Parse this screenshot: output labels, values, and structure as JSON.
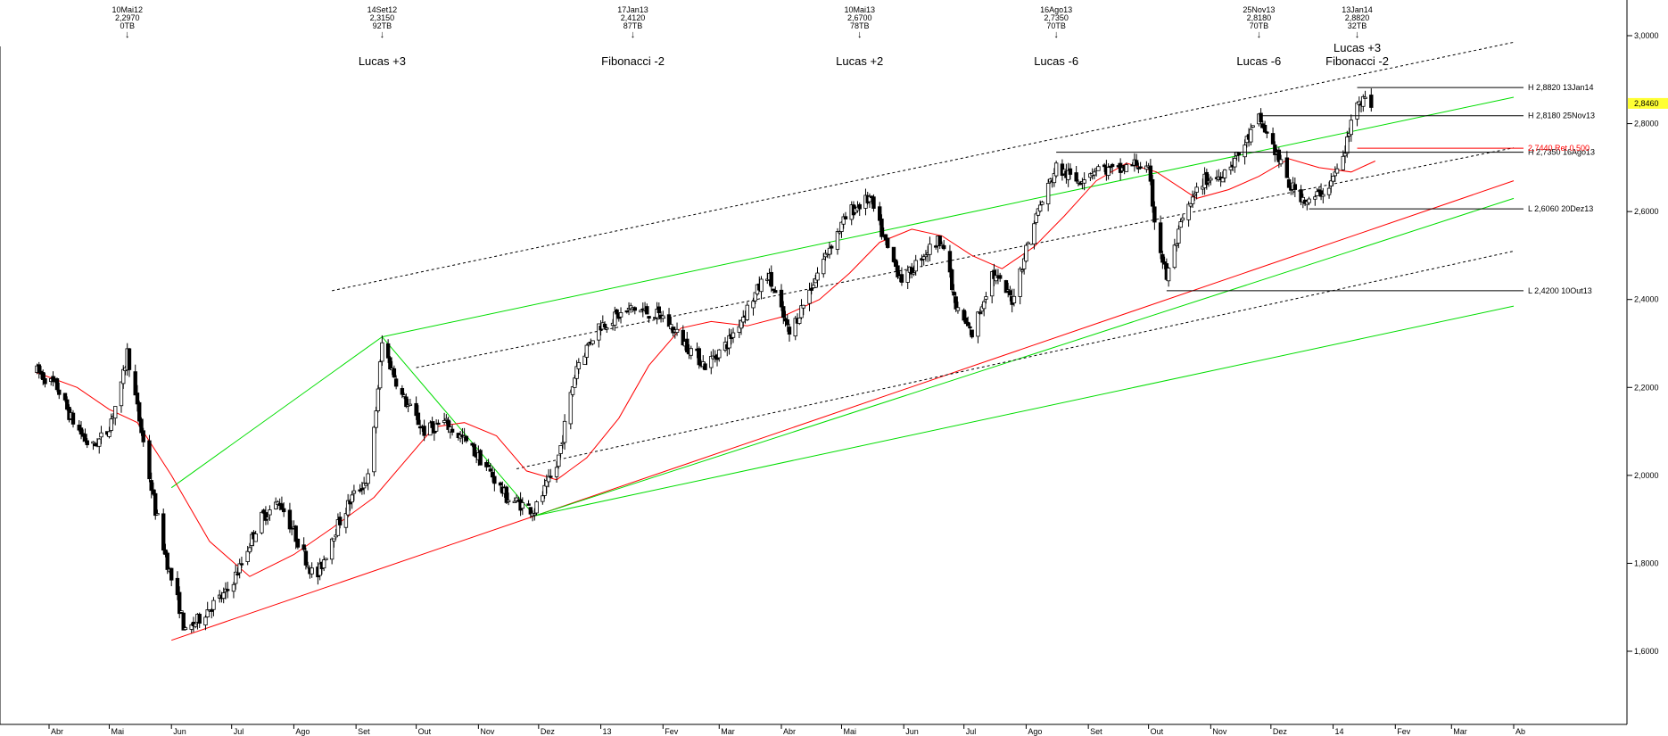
{
  "chart_data": {
    "type": "candlestick",
    "title": "",
    "xlabel": "",
    "ylabel": "",
    "ylim": [
      1.4,
      3.08
    ],
    "y_ticks": [
      {
        "value": 3.0,
        "label": "3,0000"
      },
      {
        "value": 2.8,
        "label": "2,8000"
      },
      {
        "value": 2.6,
        "label": "2,6000"
      },
      {
        "value": 2.4,
        "label": "2,4000"
      },
      {
        "value": 2.2,
        "label": "2,2000"
      },
      {
        "value": 2.0,
        "label": "2,0000"
      },
      {
        "value": 1.8,
        "label": "1,8000"
      },
      {
        "value": 1.6,
        "label": "1,6000"
      }
    ],
    "x_ticks": [
      {
        "date": "2012-04-01",
        "label": "Abr"
      },
      {
        "date": "2012-05-01",
        "label": "Mai"
      },
      {
        "date": "2012-06-01",
        "label": "Jun"
      },
      {
        "date": "2012-07-01",
        "label": "Jul"
      },
      {
        "date": "2012-08-01",
        "label": "Ago"
      },
      {
        "date": "2012-09-01",
        "label": "Set"
      },
      {
        "date": "2012-10-01",
        "label": "Out"
      },
      {
        "date": "2012-11-01",
        "label": "Nov"
      },
      {
        "date": "2012-12-01",
        "label": "Dez"
      },
      {
        "date": "2013-01-01",
        "label": "13"
      },
      {
        "date": "2013-02-01",
        "label": "Fev"
      },
      {
        "date": "2013-03-01",
        "label": "Mar"
      },
      {
        "date": "2013-04-01",
        "label": "Abr"
      },
      {
        "date": "2013-05-01",
        "label": "Mai"
      },
      {
        "date": "2013-06-01",
        "label": "Jun"
      },
      {
        "date": "2013-07-01",
        "label": "Jul"
      },
      {
        "date": "2013-08-01",
        "label": "Ago"
      },
      {
        "date": "2013-09-01",
        "label": "Set"
      },
      {
        "date": "2013-10-01",
        "label": "Out"
      },
      {
        "date": "2013-11-01",
        "label": "Nov"
      },
      {
        "date": "2013-12-01",
        "label": "Dez"
      },
      {
        "date": "2014-01-01",
        "label": "14"
      },
      {
        "date": "2014-02-01",
        "label": "Fev"
      },
      {
        "date": "2014-03-01",
        "label": "Mar"
      },
      {
        "date": "2014-04-01",
        "label": "Ab"
      }
    ],
    "top_markers": [
      {
        "date": "2012-05-10",
        "label": "10Mai12",
        "value": "2,2970",
        "bars": "0TB",
        "note": ""
      },
      {
        "date": "2012-09-14",
        "label": "14Set12",
        "value": "2,3150",
        "bars": "92TB",
        "note": "Lucas +3"
      },
      {
        "date": "2013-01-17",
        "label": "17Jan13",
        "value": "2,4120",
        "bars": "87TB",
        "note": "Fibonacci -2"
      },
      {
        "date": "2013-05-10",
        "label": "10Mai13",
        "value": "2,6700",
        "bars": "78TB",
        "note": "Lucas +2"
      },
      {
        "date": "2013-08-16",
        "label": "16Ago13",
        "value": "2,7350",
        "bars": "70TB",
        "note": "Lucas -6"
      },
      {
        "date": "2013-11-25",
        "label": "25Nov13",
        "value": "2,8180",
        "bars": "70TB",
        "note": "Lucas -6"
      },
      {
        "date": "2014-01-13",
        "label": "13Jan14",
        "value": "2,8820",
        "bars": "32TB",
        "note": "Lucas +3\nFibonacci -2"
      }
    ],
    "level_lines": [
      {
        "label": "H 2,8820 13Jan14",
        "value": 2.882,
        "from": "2014-01-13",
        "color": "#000000"
      },
      {
        "label": "H 2,8180 25Nov13",
        "value": 2.818,
        "from": "2013-11-25",
        "color": "#000000"
      },
      {
        "label": "H 2,7350 16Ago13",
        "value": 2.735,
        "from": "2013-08-16",
        "color": "#000000"
      },
      {
        "label": "2,7440 Ret 0,500",
        "value": 2.744,
        "from": "2014-01-13",
        "color": "#ff0000"
      },
      {
        "label": "L 2,6060 20Dez13",
        "value": 2.606,
        "from": "2013-12-20",
        "color": "#000000"
      },
      {
        "label": "L 2,4200 10Out13",
        "value": 2.42,
        "from": "2013-10-10",
        "color": "#000000"
      }
    ],
    "last_price": {
      "value": 2.846,
      "label": "2,8460",
      "color": "#ffff33"
    },
    "trend_lines": [
      {
        "color": "#ff0000",
        "style": "solid",
        "points": [
          [
            "2012-06-01",
            1.625
          ],
          [
            "2014-04-01",
            2.67
          ]
        ]
      },
      {
        "color": "#00dd00",
        "style": "solid",
        "points": [
          [
            "2012-06-01",
            1.972
          ],
          [
            "2012-09-14",
            2.315
          ]
        ]
      },
      {
        "color": "#00dd00",
        "style": "solid",
        "points": [
          [
            "2012-09-14",
            2.315
          ],
          [
            "2014-04-01",
            2.86
          ]
        ]
      },
      {
        "color": "#00dd00",
        "style": "solid",
        "points": [
          [
            "2012-09-14",
            2.315
          ],
          [
            "2012-11-29",
            1.908
          ]
        ]
      },
      {
        "color": "#00dd00",
        "style": "solid",
        "points": [
          [
            "2012-11-29",
            1.908
          ],
          [
            "2014-04-01",
            2.63
          ]
        ]
      },
      {
        "color": "#00dd00",
        "style": "solid",
        "points": [
          [
            "2012-11-29",
            1.908
          ],
          [
            "2014-04-01",
            2.385
          ]
        ]
      },
      {
        "color": "#000000",
        "style": "dashed",
        "points": [
          [
            "2012-08-20",
            2.42
          ],
          [
            "2014-04-01",
            2.985
          ]
        ]
      },
      {
        "color": "#000000",
        "style": "dashed",
        "points": [
          [
            "2012-10-01",
            2.245
          ],
          [
            "2014-04-01",
            2.745
          ]
        ]
      },
      {
        "color": "#000000",
        "style": "dashed",
        "points": [
          [
            "2012-11-20",
            2.015
          ],
          [
            "2014-04-01",
            2.51
          ]
        ]
      }
    ],
    "moving_average": {
      "color": "#ff0000",
      "points": [
        [
          "2012-03-25",
          2.235
        ],
        [
          "2012-04-15",
          2.2
        ],
        [
          "2012-05-01",
          2.15
        ],
        [
          "2012-05-15",
          2.12
        ],
        [
          "2012-06-01",
          2.0
        ],
        [
          "2012-06-20",
          1.85
        ],
        [
          "2012-07-10",
          1.77
        ],
        [
          "2012-08-01",
          1.82
        ],
        [
          "2012-08-20",
          1.88
        ],
        [
          "2012-09-10",
          1.95
        ],
        [
          "2012-09-25",
          2.03
        ],
        [
          "2012-10-10",
          2.11
        ],
        [
          "2012-10-25",
          2.12
        ],
        [
          "2012-11-10",
          2.09
        ],
        [
          "2012-11-25",
          2.01
        ],
        [
          "2012-12-10",
          1.99
        ],
        [
          "2012-12-25",
          2.04
        ],
        [
          "2013-01-10",
          2.13
        ],
        [
          "2013-01-25",
          2.25
        ],
        [
          "2013-02-10",
          2.335
        ],
        [
          "2013-02-25",
          2.35
        ],
        [
          "2013-03-15",
          2.34
        ],
        [
          "2013-04-01",
          2.36
        ],
        [
          "2013-04-20",
          2.4
        ],
        [
          "2013-05-05",
          2.46
        ],
        [
          "2013-05-20",
          2.53
        ],
        [
          "2013-06-05",
          2.56
        ],
        [
          "2013-06-20",
          2.545
        ],
        [
          "2013-07-05",
          2.5
        ],
        [
          "2013-07-20",
          2.47
        ],
        [
          "2013-08-05",
          2.52
        ],
        [
          "2013-08-20",
          2.59
        ],
        [
          "2013-09-05",
          2.67
        ],
        [
          "2013-09-20",
          2.71
        ],
        [
          "2013-10-05",
          2.69
        ],
        [
          "2013-10-25",
          2.63
        ],
        [
          "2013-11-10",
          2.65
        ],
        [
          "2013-11-25",
          2.68
        ],
        [
          "2013-12-10",
          2.72
        ],
        [
          "2013-12-25",
          2.7
        ],
        [
          "2014-01-10",
          2.69
        ],
        [
          "2014-01-22",
          2.715
        ]
      ]
    },
    "price_path": [
      [
        "2012-03-25",
        2.24,
        0
      ],
      [
        "2012-04-05",
        2.2,
        0
      ],
      [
        "2012-04-12",
        2.13,
        0
      ],
      [
        "2012-04-22",
        2.06,
        0
      ],
      [
        "2012-04-30",
        2.1,
        0
      ],
      [
        "2012-05-07",
        2.2,
        0
      ],
      [
        "2012-05-10",
        2.28,
        0
      ],
      [
        "2012-05-17",
        2.1,
        0
      ],
      [
        "2012-05-24",
        1.92,
        0
      ],
      [
        "2012-05-31",
        1.78,
        0
      ],
      [
        "2012-06-05",
        1.7,
        0
      ],
      [
        "2012-06-08",
        1.64,
        0
      ],
      [
        "2012-06-20",
        1.7,
        0
      ],
      [
        "2012-06-28",
        1.73,
        0
      ],
      [
        "2012-07-05",
        1.79,
        0
      ],
      [
        "2012-07-15",
        1.9,
        0
      ],
      [
        "2012-07-25",
        1.94,
        0
      ],
      [
        "2012-08-03",
        1.85,
        0
      ],
      [
        "2012-08-12",
        1.76,
        0
      ],
      [
        "2012-08-20",
        1.86,
        0
      ],
      [
        "2012-08-30",
        1.95,
        0
      ],
      [
        "2012-09-08",
        2.0,
        0
      ],
      [
        "2012-09-14",
        2.3,
        0
      ],
      [
        "2012-09-24",
        2.18,
        0
      ],
      [
        "2012-10-05",
        2.1,
        0
      ],
      [
        "2012-10-15",
        2.12,
        0
      ],
      [
        "2012-10-25",
        2.08,
        0
      ],
      [
        "2012-11-05",
        2.02,
        0
      ],
      [
        "2012-11-15",
        1.95,
        0
      ],
      [
        "2012-11-29",
        1.92,
        0
      ],
      [
        "2012-12-10",
        2.02,
        0
      ],
      [
        "2012-12-20",
        2.25,
        0
      ],
      [
        "2012-12-31",
        2.34,
        0
      ],
      [
        "2013-01-17",
        2.38,
        0
      ],
      [
        "2013-02-01",
        2.36,
        0
      ],
      [
        "2013-02-12",
        2.3,
        0
      ],
      [
        "2013-02-22",
        2.25,
        0
      ],
      [
        "2013-03-05",
        2.3,
        0
      ],
      [
        "2013-03-15",
        2.38,
        0
      ],
      [
        "2013-03-25",
        2.46,
        0
      ],
      [
        "2013-04-05",
        2.32,
        0
      ],
      [
        "2013-04-15",
        2.42,
        0
      ],
      [
        "2013-04-25",
        2.52,
        0
      ],
      [
        "2013-05-05",
        2.6,
        0
      ],
      [
        "2013-05-15",
        2.63,
        0
      ],
      [
        "2013-05-25",
        2.5,
        0
      ],
      [
        "2013-06-01",
        2.44,
        0
      ],
      [
        "2013-06-10",
        2.5,
        0
      ],
      [
        "2013-06-20",
        2.54,
        0
      ],
      [
        "2013-06-27",
        2.38,
        0
      ],
      [
        "2013-07-05",
        2.32,
        0
      ],
      [
        "2013-07-15",
        2.46,
        0
      ],
      [
        "2013-07-25",
        2.4,
        0
      ],
      [
        "2013-08-05",
        2.58,
        0
      ],
      [
        "2013-08-16",
        2.7,
        0
      ],
      [
        "2013-08-26",
        2.67,
        0
      ],
      [
        "2013-09-05",
        2.7,
        0
      ],
      [
        "2013-09-15",
        2.69,
        0
      ],
      [
        "2013-09-25",
        2.71,
        0
      ],
      [
        "2013-10-01",
        2.69,
        0
      ],
      [
        "2013-10-05",
        2.55,
        0
      ],
      [
        "2013-10-10",
        2.45,
        0
      ],
      [
        "2013-10-18",
        2.58,
        0
      ],
      [
        "2013-10-28",
        2.67,
        0
      ],
      [
        "2013-11-05",
        2.68,
        0
      ],
      [
        "2013-11-15",
        2.73,
        0
      ],
      [
        "2013-11-25",
        2.81,
        0
      ],
      [
        "2013-12-02",
        2.75,
        0
      ],
      [
        "2013-12-10",
        2.66,
        0
      ],
      [
        "2013-12-20",
        2.62,
        0
      ],
      [
        "2013-12-30",
        2.66,
        0
      ],
      [
        "2014-01-06",
        2.72,
        0
      ],
      [
        "2014-01-10",
        2.8,
        0
      ],
      [
        "2014-01-13",
        2.86,
        0
      ],
      [
        "2014-01-20",
        2.846,
        0
      ]
    ]
  }
}
